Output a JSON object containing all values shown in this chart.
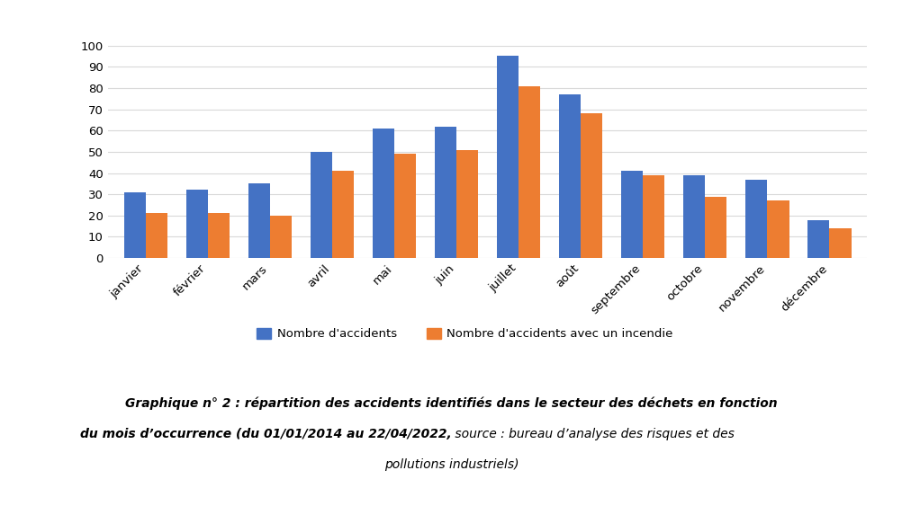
{
  "months": [
    "janvier",
    "février",
    "mars",
    "avril",
    "mai",
    "juin",
    "juillet",
    "août",
    "septembre",
    "octobre",
    "novembre",
    "décembre"
  ],
  "accidents": [
    31,
    32,
    35,
    50,
    61,
    62,
    95,
    77,
    41,
    39,
    37,
    18
  ],
  "accidents_incendie": [
    21,
    21,
    20,
    41,
    49,
    51,
    81,
    68,
    39,
    29,
    27,
    14
  ],
  "color_accidents": "#4472C4",
  "color_incendie": "#ED7D31",
  "legend_accidents": "Nombre d'accidents",
  "legend_incendie": "Nombre d'accidents avec un incendie",
  "ylim": [
    0,
    100
  ],
  "yticks": [
    0,
    10,
    20,
    30,
    40,
    50,
    60,
    70,
    80,
    90,
    100
  ],
  "background_color": "#FFFFFF",
  "plot_bg_color": "#FFFFFF",
  "grid_color": "#D9D9D9",
  "border_color": "#BFBFBF",
  "bar_width": 0.35,
  "caption_line1_bold": "Graphique n° 2 : répartition des accidents identifiés dans le secteur des déchets en fonction",
  "caption_line2_bold": "du mois d’occurrence (du 01/01/2014 au 22/04/2022,",
  "caption_line2_normal": " source : bureau d’analyse des risques et des",
  "caption_line3_normal": "pollutions industriels)"
}
